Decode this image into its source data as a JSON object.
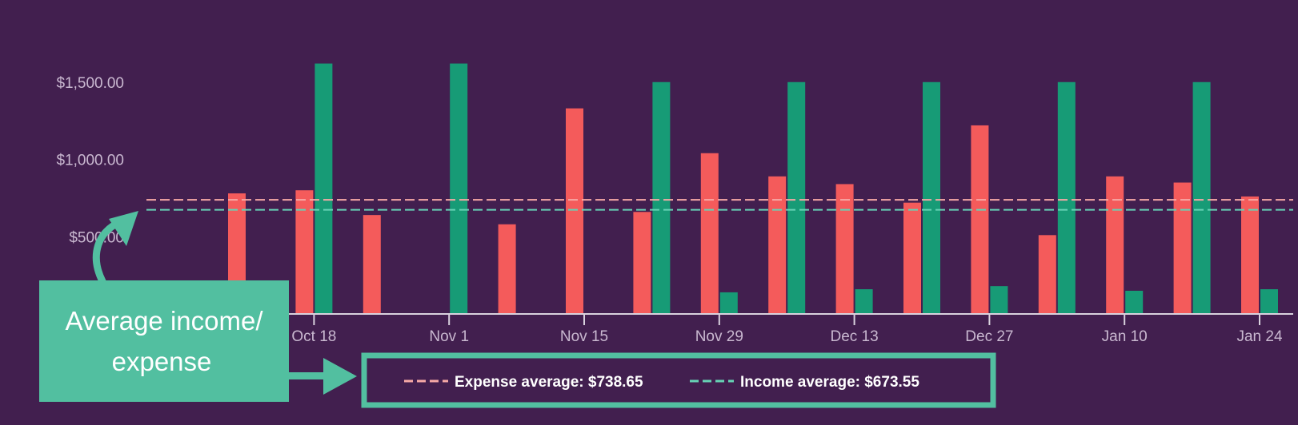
{
  "colors": {
    "background": "#421f4f",
    "expense": "#f45b5b",
    "income": "#179b76",
    "expense_avg_line": "#f6a9a6",
    "income_avg_line": "#67d3b6",
    "axis": "#d9d2de",
    "tick_text": "#c9b8d0",
    "callout": "#52bfa0"
  },
  "chart_data": {
    "type": "bar",
    "ylim": [
      0,
      1650
    ],
    "y_ticks": [
      {
        "value": 500,
        "label": "$500.00"
      },
      {
        "value": 1000,
        "label": "$1,000.00"
      },
      {
        "value": 1500,
        "label": "$1,500.00"
      }
    ],
    "x_ticks": [
      {
        "week": 1,
        "label": "Oct 18"
      },
      {
        "week": 3,
        "label": "Nov 1"
      },
      {
        "week": 5,
        "label": "Nov 15"
      },
      {
        "week": 7,
        "label": "Nov 29"
      },
      {
        "week": 9,
        "label": "Dec 13"
      },
      {
        "week": 11,
        "label": "Dec 27"
      },
      {
        "week": 13,
        "label": "Jan 10"
      },
      {
        "week": 15,
        "label": "Jan 24"
      }
    ],
    "series": [
      {
        "key": "expense",
        "values": [
          780,
          800,
          640,
          0,
          580,
          1330,
          660,
          1040,
          890,
          840,
          720,
          1220,
          510,
          890,
          850,
          760,
          5
        ]
      },
      {
        "key": "income",
        "values": [
          0,
          1620,
          0,
          1620,
          0,
          0,
          1500,
          140,
          1500,
          160,
          1500,
          180,
          1500,
          150,
          1500,
          160,
          0
        ]
      }
    ],
    "averages": [
      {
        "key": "expense",
        "value": 738.65,
        "label": "Expense average: $738.65"
      },
      {
        "key": "income",
        "value": 673.55,
        "label": "Income average: $673.55"
      }
    ],
    "annotation": {
      "line1": "Average income/",
      "line2": "expense"
    }
  }
}
